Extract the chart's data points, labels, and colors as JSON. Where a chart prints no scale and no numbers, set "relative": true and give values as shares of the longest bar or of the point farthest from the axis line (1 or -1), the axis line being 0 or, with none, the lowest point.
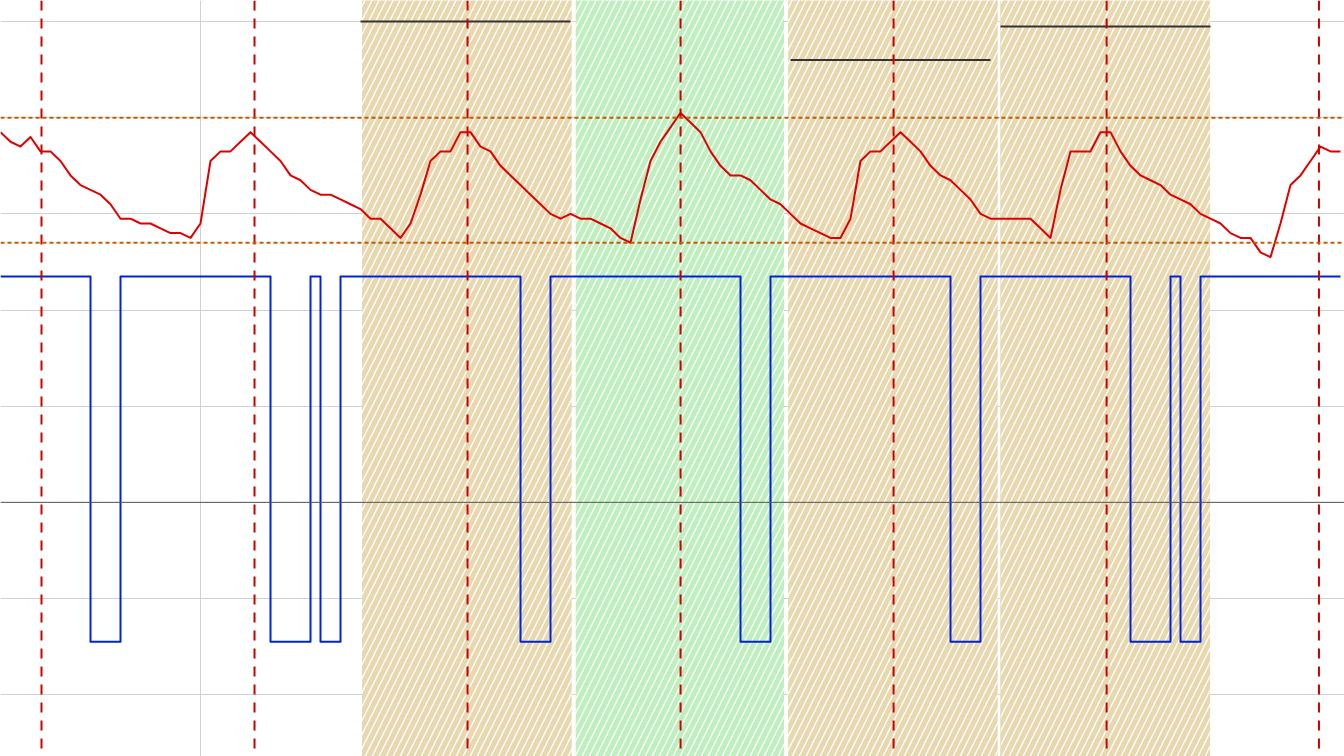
{
  "chart_data": {
    "type": "line",
    "relative": true,
    "grid": true,
    "tick_labels": false,
    "categories": [
      null,
      null,
      null,
      null,
      null,
      null,
      null,
      null,
      null,
      null,
      null,
      null,
      null,
      null,
      null,
      null,
      null,
      null,
      null,
      null,
      null,
      null,
      null,
      null,
      null,
      null,
      null,
      null,
      null,
      null,
      null,
      null,
      null,
      null,
      null,
      null,
      null,
      null,
      null,
      null,
      null,
      null,
      null,
      null,
      null,
      null,
      null,
      null,
      null,
      null,
      null,
      null,
      null,
      null,
      null,
      null,
      null,
      null,
      null,
      null,
      null,
      null,
      null,
      null,
      null,
      null,
      null,
      null,
      null,
      null,
      null,
      null,
      null,
      null,
      null,
      null,
      null,
      null,
      null,
      null,
      null,
      null,
      null,
      null,
      null,
      null,
      null,
      null,
      null,
      null,
      null,
      null,
      null,
      null,
      null,
      null,
      null,
      null,
      null,
      null,
      null,
      null,
      null,
      null,
      null,
      null,
      null,
      null,
      null,
      null,
      null,
      null,
      null,
      null,
      null,
      null,
      null,
      null,
      null,
      null,
      null,
      null,
      null,
      null,
      null,
      null,
      null,
      null,
      null,
      null,
      null,
      null,
      null,
      null,
      null
    ],
    "series": [
      {
        "color": "#e00000",
        "values": [
          0.77,
          0.75,
          0.74,
          0.76,
          0.73,
          0.73,
          0.71,
          0.68,
          0.66,
          0.65,
          0.64,
          0.62,
          0.59,
          0.59,
          0.58,
          0.58,
          0.57,
          0.56,
          0.56,
          0.55,
          0.58,
          0.71,
          0.73,
          0.73,
          0.75,
          0.77,
          0.75,
          0.73,
          0.71,
          0.68,
          0.67,
          0.65,
          0.64,
          0.64,
          0.63,
          0.62,
          0.61,
          0.59,
          0.59,
          0.57,
          0.55,
          0.58,
          0.64,
          0.71,
          0.73,
          0.73,
          0.77,
          0.77,
          0.74,
          0.73,
          0.7,
          0.68,
          0.66,
          0.64,
          0.62,
          0.6,
          0.59,
          0.6,
          0.59,
          0.59,
          0.58,
          0.57,
          0.55,
          0.54,
          0.63,
          0.71,
          0.75,
          0.78,
          0.81,
          0.79,
          0.77,
          0.73,
          0.7,
          0.68,
          0.68,
          0.67,
          0.65,
          0.63,
          0.62,
          0.6,
          0.58,
          0.57,
          0.56,
          0.55,
          0.55,
          0.59,
          0.71,
          0.73,
          0.73,
          0.75,
          0.77,
          0.75,
          0.73,
          0.7,
          0.68,
          0.67,
          0.65,
          0.63,
          0.6,
          0.59,
          0.59,
          0.59,
          0.59,
          0.59,
          0.57,
          0.55,
          0.65,
          0.73,
          0.73,
          0.73,
          0.77,
          0.77,
          0.73,
          0.7,
          0.68,
          0.67,
          0.66,
          0.64,
          0.63,
          0.62,
          0.6,
          0.59,
          0.58,
          0.56,
          0.55,
          0.55,
          0.52,
          0.51,
          0.58,
          0.66,
          0.68,
          0.71,
          0.74,
          0.73,
          0.73
        ]
      },
      {
        "type": "step",
        "color": "#0022dd",
        "values": [
          0.47,
          0.47,
          0.47,
          0.47,
          0.47,
          0.47,
          0.47,
          0.47,
          0.47,
          -0.29,
          -0.29,
          -0.29,
          0.47,
          0.47,
          0.47,
          0.47,
          0.47,
          0.47,
          0.47,
          0.47,
          0.47,
          0.47,
          0.47,
          0.47,
          0.47,
          0.47,
          0.47,
          -0.29,
          -0.29,
          -0.29,
          -0.29,
          0.47,
          -0.29,
          -0.29,
          0.47,
          0.47,
          0.47,
          0.47,
          0.47,
          0.47,
          0.47,
          0.47,
          0.47,
          0.47,
          0.47,
          0.47,
          0.47,
          0.47,
          0.47,
          0.47,
          0.47,
          0.47,
          -0.29,
          -0.29,
          -0.29,
          0.47,
          0.47,
          0.47,
          0.47,
          0.47,
          0.47,
          0.47,
          0.47,
          0.47,
          0.47,
          0.47,
          0.47,
          0.47,
          0.47,
          0.47,
          0.47,
          0.47,
          0.47,
          0.47,
          -0.29,
          -0.29,
          -0.29,
          0.47,
          0.47,
          0.47,
          0.47,
          0.47,
          0.47,
          0.47,
          0.47,
          0.47,
          0.47,
          0.47,
          0.47,
          0.47,
          0.47,
          0.47,
          0.47,
          0.47,
          0.47,
          -0.29,
          -0.29,
          -0.29,
          0.47,
          0.47,
          0.47,
          0.47,
          0.47,
          0.47,
          0.47,
          0.47,
          0.47,
          0.47,
          0.47,
          0.47,
          0.47,
          0.47,
          0.47,
          -0.29,
          -0.29,
          -0.29,
          -0.29,
          0.47,
          -0.29,
          -0.29,
          0.47,
          0.47,
          0.47,
          0.47,
          0.47,
          0.47,
          0.47,
          0.47,
          0.47,
          0.47,
          0.47,
          0.47,
          0.47,
          0.47,
          0.47
        ]
      },
      {
        "type": "line",
        "color": "#333333",
        "values": [
          null,
          null,
          null,
          null,
          null,
          null,
          null,
          null,
          null,
          null,
          null,
          null,
          null,
          null,
          null,
          null,
          null,
          null,
          null,
          null,
          null,
          null,
          null,
          null,
          null,
          null,
          null,
          null,
          null,
          null,
          null,
          null,
          null,
          null,
          null,
          null,
          1.0,
          1.0,
          1.0,
          1.0,
          1.0,
          1.0,
          1.0,
          1.0,
          1.0,
          1.0,
          1.0,
          1.0,
          1.0,
          1.0,
          1.0,
          1.0,
          1.0,
          1.0,
          1.0,
          1.0,
          1.0,
          1.0,
          null,
          null,
          null,
          null,
          null,
          null,
          null,
          null,
          null,
          null,
          null,
          null,
          null,
          null,
          null,
          null,
          null,
          null,
          null,
          null,
          null,
          null,
          null,
          null,
          null,
          null,
          null,
          null,
          null,
          null,
          null,
          null,
          null,
          null,
          null,
          null,
          null,
          null,
          null,
          null,
          null,
          null,
          null,
          null,
          null,
          null,
          null,
          null,
          null,
          null,
          null,
          null,
          null,
          null,
          null,
          null,
          null,
          null,
          null,
          null,
          null,
          null,
          null,
          null,
          null,
          null,
          null,
          null,
          null,
          null,
          null,
          null,
          null,
          null,
          null,
          null,
          null
        ]
      },
      {
        "type": "line",
        "color": "#333333",
        "values": [
          null,
          null,
          null,
          null,
          null,
          null,
          null,
          null,
          null,
          null,
          null,
          null,
          null,
          null,
          null,
          null,
          null,
          null,
          null,
          null,
          null,
          null,
          null,
          null,
          null,
          null,
          null,
          null,
          null,
          null,
          null,
          null,
          null,
          null,
          null,
          null,
          null,
          null,
          null,
          null,
          null,
          null,
          null,
          null,
          null,
          null,
          null,
          null,
          null,
          null,
          null,
          null,
          null,
          null,
          null,
          null,
          null,
          null,
          null,
          null,
          null,
          null,
          null,
          null,
          null,
          null,
          null,
          null,
          null,
          null,
          null,
          null,
          null,
          null,
          null,
          null,
          null,
          null,
          null,
          0.92,
          0.92,
          0.92,
          0.92,
          0.92,
          0.92,
          0.92,
          0.92,
          0.92,
          0.92,
          0.92,
          0.92,
          0.92,
          0.92,
          0.92,
          0.92,
          0.92,
          0.92,
          0.92,
          0.92,
          0.92,
          null,
          null,
          null,
          null,
          null,
          null,
          null,
          null,
          null,
          null,
          null,
          null,
          null,
          null,
          null,
          null,
          null,
          null,
          null,
          null,
          null,
          null,
          null,
          null,
          null,
          null,
          null,
          null,
          null,
          null,
          null,
          null,
          null,
          null,
          null
        ]
      },
      {
        "type": "line",
        "color": "#333333",
        "values": [
          null,
          null,
          null,
          null,
          null,
          null,
          null,
          null,
          null,
          null,
          null,
          null,
          null,
          null,
          null,
          null,
          null,
          null,
          null,
          null,
          null,
          null,
          null,
          null,
          null,
          null,
          null,
          null,
          null,
          null,
          null,
          null,
          null,
          null,
          null,
          null,
          null,
          null,
          null,
          null,
          null,
          null,
          null,
          null,
          null,
          null,
          null,
          null,
          null,
          null,
          null,
          null,
          null,
          null,
          null,
          null,
          null,
          null,
          null,
          null,
          null,
          null,
          null,
          null,
          null,
          null,
          null,
          null,
          null,
          null,
          null,
          null,
          null,
          null,
          null,
          null,
          null,
          null,
          null,
          null,
          null,
          null,
          null,
          null,
          null,
          null,
          null,
          null,
          null,
          null,
          null,
          null,
          null,
          null,
          null,
          null,
          null,
          null,
          null,
          null,
          0.99,
          0.99,
          0.99,
          0.99,
          0.99,
          0.99,
          0.99,
          0.99,
          0.99,
          0.99,
          0.99,
          0.99,
          0.99,
          0.99,
          0.99,
          0.99,
          0.99,
          0.99,
          0.99,
          0.99,
          0.99,
          0.99,
          null,
          null,
          null,
          null,
          null,
          null,
          null,
          null,
          null,
          null,
          null,
          null,
          null
        ]
      }
    ],
    "ref_lines": [
      {
        "axis": "y",
        "value": 0.8,
        "color": "#c85a00",
        "line_style": "dotted"
      },
      {
        "axis": "y",
        "value": 0.54,
        "color": "#c85a00",
        "line_style": "dotted"
      }
    ]
  }
}
